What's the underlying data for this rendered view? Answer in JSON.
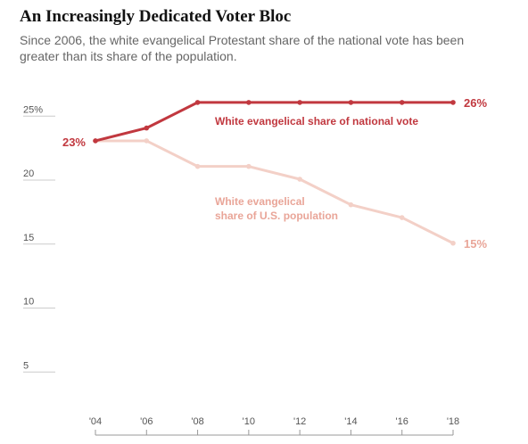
{
  "title": "An Increasingly Dedicated Voter Bloc",
  "subtitle": "Since 2006, the white evangelical Protestant share of the national vote has been greater than its share of the population.",
  "colors": {
    "vote": "#c1383f",
    "population": "#f3d0c7",
    "population_label": "#e9a598",
    "axis": "#999999",
    "text": "#555555"
  },
  "chart_data": {
    "type": "line",
    "x": [
      2004,
      2006,
      2008,
      2010,
      2012,
      2014,
      2016,
      2018
    ],
    "x_tick_labels": [
      "'04",
      "'06",
      "'08",
      "'10",
      "'12",
      "'14",
      "'16",
      "'18"
    ],
    "y_ticks": [
      {
        "value": 25,
        "label": "25%"
      },
      {
        "value": 20,
        "label": "20"
      },
      {
        "value": 15,
        "label": "15"
      },
      {
        "value": 10,
        "label": "10"
      },
      {
        "value": 5,
        "label": "5"
      }
    ],
    "ylim": [
      0,
      28
    ],
    "grid": false,
    "series": [
      {
        "id": "vote",
        "name": "White evangelical share of national vote",
        "label_lines": [
          "White evangelical share of national vote"
        ],
        "values": [
          23,
          24,
          26,
          26,
          26,
          26,
          26,
          26
        ],
        "start_label": "23%",
        "end_label": "26%"
      },
      {
        "id": "population",
        "name": "White evangelical share of U.S. population",
        "label_lines": [
          "White evangelical",
          "share of U.S. population"
        ],
        "values": [
          23,
          23,
          21,
          21,
          20,
          18,
          17,
          15
        ],
        "end_label": "15%"
      }
    ]
  }
}
